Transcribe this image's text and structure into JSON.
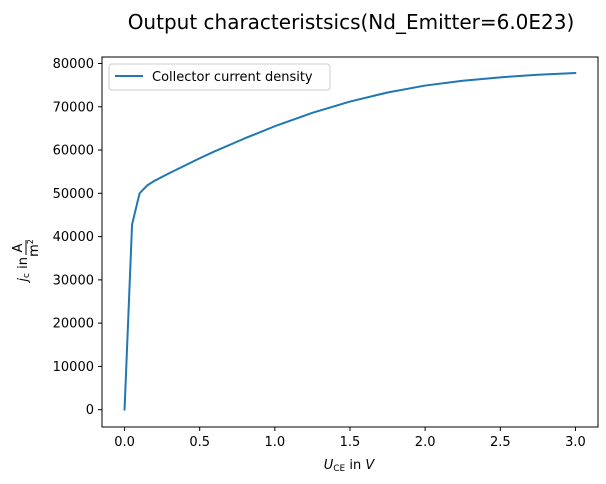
{
  "chart_data": {
    "type": "line",
    "title": "Output characteristsics(Nd_Emitter=6.0E23)",
    "xlabel_var": "U",
    "xlabel_sub": "CE",
    "xlabel_unit_text": " in ",
    "xlabel_unit": "V",
    "ylabel_var": "j",
    "ylabel_sub": "c",
    "ylabel_unit_text": " in ",
    "ylabel_unit_num": "A",
    "ylabel_unit_den": "m",
    "ylabel_unit_den_exp": "2",
    "xlim": [
      -0.15,
      3.15
    ],
    "ylim": [
      -4000,
      81500
    ],
    "xticks": [
      0.0,
      0.5,
      1.0,
      1.5,
      2.0,
      2.5,
      3.0
    ],
    "xtick_labels": [
      "0.0",
      "0.5",
      "1.0",
      "1.5",
      "2.0",
      "2.5",
      "3.0"
    ],
    "yticks": [
      0,
      10000,
      20000,
      30000,
      40000,
      50000,
      60000,
      70000,
      80000
    ],
    "ytick_labels": [
      "0",
      "10000",
      "20000",
      "30000",
      "40000",
      "50000",
      "60000",
      "70000",
      "80000"
    ],
    "grid": false,
    "legend_position": "top-left",
    "series": [
      {
        "name": "Collector current density",
        "color": "#1f77b4",
        "x": [
          0.0,
          0.05,
          0.1,
          0.15,
          0.2,
          0.3,
          0.4,
          0.5,
          0.6,
          0.8,
          1.0,
          1.25,
          1.5,
          1.75,
          2.0,
          2.25,
          2.5,
          2.75,
          3.0
        ],
        "y": [
          0,
          42800,
          50000,
          51800,
          52900,
          54700,
          56400,
          58100,
          59700,
          62700,
          65500,
          68600,
          71200,
          73300,
          74900,
          76000,
          76800,
          77400,
          77800
        ]
      }
    ]
  }
}
